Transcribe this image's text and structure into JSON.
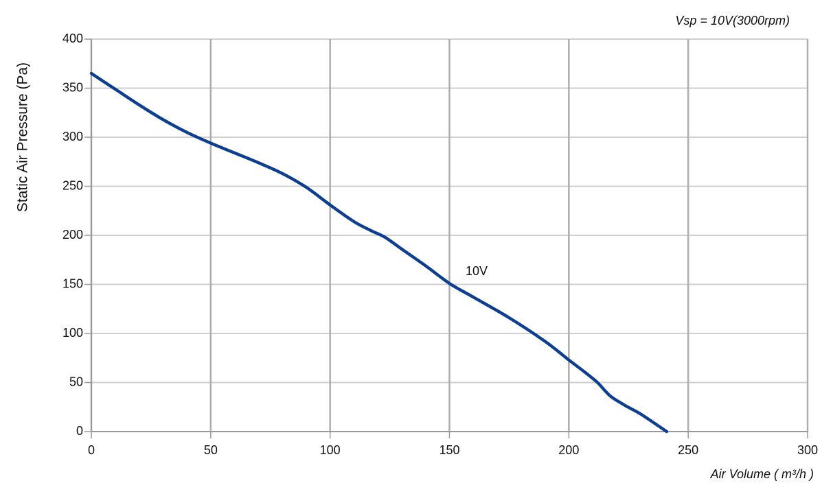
{
  "chart_data": {
    "type": "line",
    "title": "Vsp = 10V(3000rpm)",
    "x_label": "Air Volume ( m³/h )",
    "y_label": "Static Air Pressure  (Pa)",
    "annotation": "10V",
    "x": [
      0,
      10,
      20,
      30,
      40,
      50,
      60,
      70,
      80,
      90,
      100,
      110,
      117,
      123,
      130,
      140,
      150,
      160,
      175,
      190,
      200,
      207,
      212,
      215,
      218,
      224,
      230,
      241
    ],
    "series": [
      {
        "name": "10V",
        "color": "#0e3f8e",
        "values": [
          365,
          349,
          333,
          318,
          305,
          294,
          284,
          274,
          263,
          249,
          231,
          214,
          205,
          198,
          186,
          169,
          151,
          137,
          116,
          92,
          73,
          60,
          50,
          42,
          35,
          26,
          18,
          0
        ]
      }
    ],
    "xlim": [
      0,
      300
    ],
    "ylim": [
      0,
      400
    ],
    "xticks": [
      0,
      50,
      100,
      150,
      200,
      250,
      300
    ],
    "yticks": [
      0,
      50,
      100,
      150,
      200,
      250,
      300,
      350,
      400
    ],
    "grid": true
  }
}
